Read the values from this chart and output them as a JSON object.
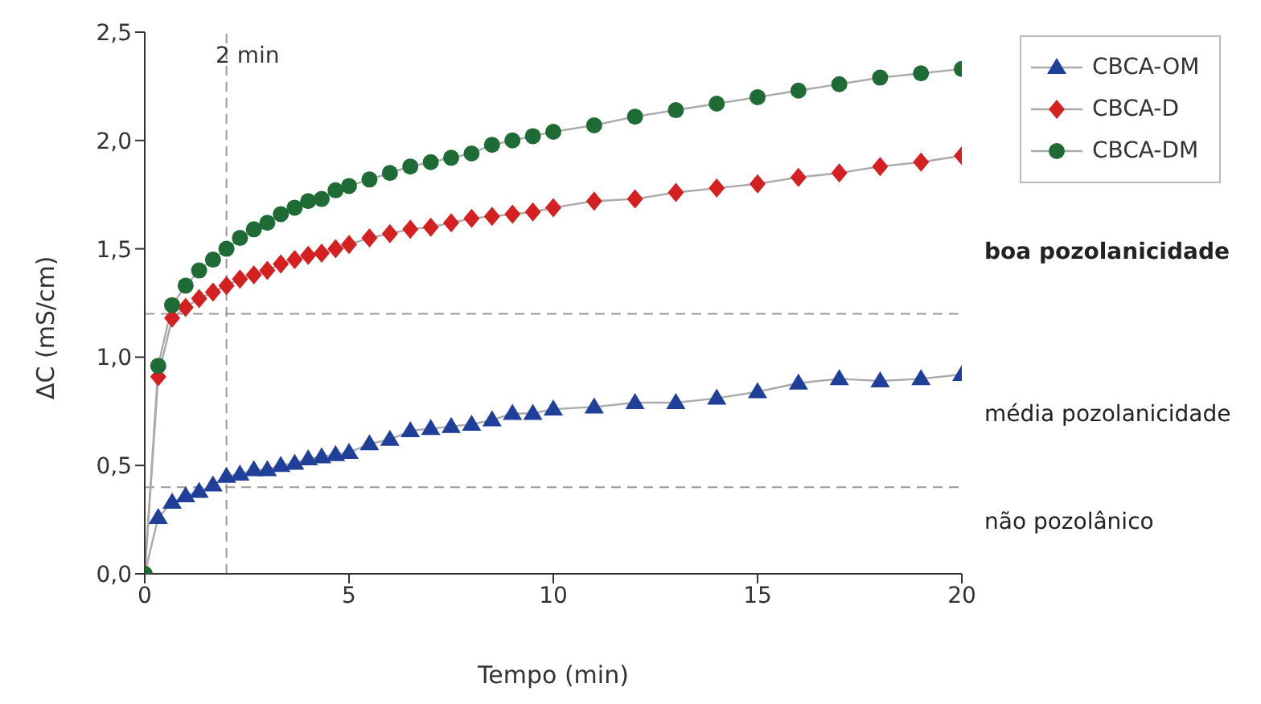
{
  "chart_data": {
    "type": "line",
    "xlabel": "Tempo (min)",
    "ylabel": "ΔC (mS/cm)",
    "x": [
      0,
      0.33,
      0.67,
      1,
      1.33,
      1.67,
      2,
      2.33,
      2.67,
      3,
      3.33,
      3.67,
      4,
      4.33,
      4.67,
      5,
      5.5,
      6,
      6.5,
      7,
      7.5,
      8,
      8.5,
      9,
      9.5,
      10,
      11,
      12,
      13,
      14,
      15,
      16,
      17,
      18,
      19,
      20
    ],
    "series": [
      {
        "name": "CBCA-OM",
        "color": "#1f3f99",
        "marker": "triangle",
        "values": [
          0,
          0.26,
          0.33,
          0.36,
          0.38,
          0.41,
          0.45,
          0.46,
          0.48,
          0.48,
          0.5,
          0.51,
          0.53,
          0.54,
          0.55,
          0.56,
          0.6,
          0.62,
          0.66,
          0.67,
          0.68,
          0.69,
          0.71,
          0.74,
          0.74,
          0.76,
          0.77,
          0.79,
          0.79,
          0.81,
          0.84,
          0.88,
          0.9,
          0.89,
          0.9,
          0.92
        ]
      },
      {
        "name": "CBCA-D",
        "color": "#d42020",
        "marker": "diamond",
        "values": [
          0,
          0.91,
          1.18,
          1.23,
          1.27,
          1.3,
          1.33,
          1.36,
          1.38,
          1.4,
          1.43,
          1.45,
          1.47,
          1.48,
          1.5,
          1.52,
          1.55,
          1.57,
          1.59,
          1.6,
          1.62,
          1.64,
          1.65,
          1.66,
          1.67,
          1.69,
          1.72,
          1.73,
          1.76,
          1.78,
          1.8,
          1.83,
          1.85,
          1.88,
          1.9,
          1.93
        ]
      },
      {
        "name": "CBCA-DM",
        "color": "#1e6b35",
        "marker": "circle",
        "values": [
          0,
          0.96,
          1.24,
          1.33,
          1.4,
          1.45,
          1.5,
          1.55,
          1.59,
          1.62,
          1.66,
          1.69,
          1.72,
          1.73,
          1.77,
          1.79,
          1.82,
          1.85,
          1.88,
          1.9,
          1.92,
          1.94,
          1.98,
          2,
          2.02,
          2.04,
          2.07,
          2.11,
          2.14,
          2.17,
          2.2,
          2.23,
          2.26,
          2.29,
          2.31,
          2.33
        ]
      }
    ],
    "xlim": [
      0,
      20
    ],
    "xticks": [
      0,
      5,
      10,
      15,
      20
    ],
    "ylim": [
      0,
      2.5
    ],
    "yticks": [
      {
        "value": 0,
        "label": "0,0"
      },
      {
        "value": 0.5,
        "label": "0,5"
      },
      {
        "value": 1,
        "label": "1,0"
      },
      {
        "value": 1.5,
        "label": "1,5"
      },
      {
        "value": 2,
        "label": "2,0"
      },
      {
        "value": 2.5,
        "label": "2,5"
      }
    ],
    "ref_lines": [
      {
        "axis": "y",
        "value": 1.2,
        "line_style": "dashed",
        "color": "#999999"
      },
      {
        "axis": "y",
        "value": 0.4,
        "line_style": "dashed",
        "color": "#999999"
      },
      {
        "axis": "x",
        "value": 2,
        "label": "2 min",
        "line_style": "dashed",
        "color": "#999999"
      }
    ],
    "annotations": [
      "boa pozolanicidade",
      "média pozolanicidade",
      "não pozolânico"
    ],
    "grid": false,
    "legend": "top right",
    "line_style": "solid"
  }
}
